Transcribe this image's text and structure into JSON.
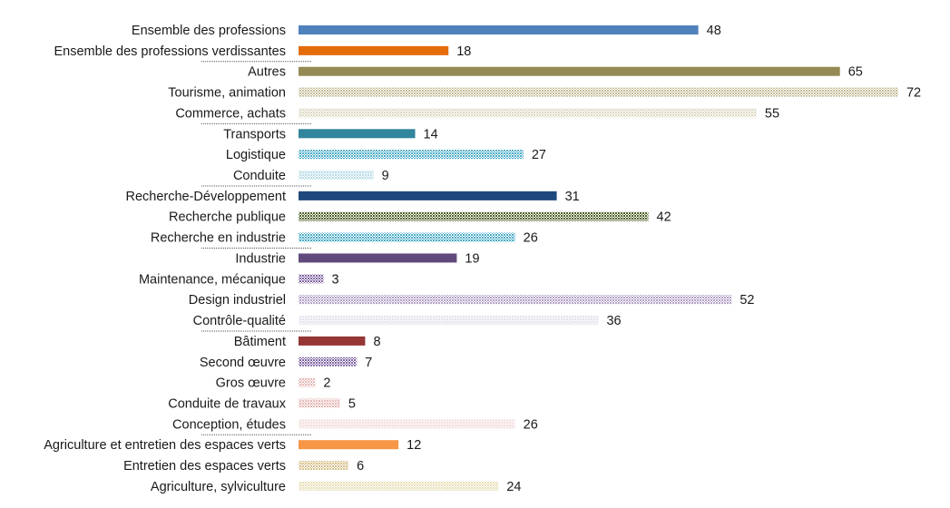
{
  "chart_data": {
    "type": "bar",
    "orientation": "horizontal",
    "categories": [
      "Ensemble des professions",
      "Ensemble des professions verdissantes",
      "Autres",
      "Tourisme, animation",
      "Commerce, achats",
      "Transports",
      "Logistique",
      "Conduite",
      "Recherche-Développement",
      "Recherche publique",
      "Recherche en industrie",
      "Industrie",
      "Maintenance, mécanique",
      "Design industriel",
      "Contrôle-qualité",
      "Bâtiment",
      "Second œuvre",
      "Gros œuvre",
      "Conduite de travaux",
      "Conception, études",
      "Agriculture et entretien des espaces verts",
      "Entretien des espaces verts",
      "Agriculture, sylviculture"
    ],
    "values": [
      48,
      18,
      65,
      72,
      55,
      14,
      27,
      9,
      31,
      42,
      26,
      19,
      3,
      52,
      36,
      8,
      7,
      2,
      5,
      26,
      12,
      6,
      24
    ],
    "value_labels": [
      "48",
      "18",
      "65",
      "72",
      "55",
      "14",
      "27",
      "9",
      "31",
      "42",
      "26",
      "19",
      "3",
      "52",
      "36",
      "8",
      "7",
      "2",
      "5",
      "26",
      "12",
      "6",
      "24"
    ],
    "group_headers": [
      2,
      5,
      8,
      11,
      15,
      20
    ],
    "bar_colors": [
      "#4f81bd",
      "#e46c0a",
      "#948a54",
      "#c4bd97",
      "#ddd9c3",
      "#31859c",
      "#4bacc6",
      "#b7dee8",
      "#1f497d",
      "#4f6228",
      "#4bacc6",
      "#604a7b",
      "#8064a2",
      "#b3a2c7",
      "#e5e0ec",
      "#953735",
      "#8064a2",
      "#e6b9b8",
      "#e6b9b8",
      "#f2dcdb",
      "#f79646",
      "#d7c08b",
      "#e8ddb5"
    ],
    "bar_patterns": [
      "solid",
      "solid",
      "solid",
      "hatch",
      "hatch",
      "solid",
      "hatch",
      "hatch",
      "solid",
      "hatch",
      "hatch",
      "solid",
      "hatch",
      "hatch",
      "hatch",
      "solid",
      "hatch",
      "hatch",
      "hatch",
      "hatch",
      "solid",
      "hatch",
      "hatch"
    ],
    "xlim": [
      0,
      75
    ],
    "title": "",
    "xlabel": "",
    "ylabel": "",
    "grid": false,
    "legend": "none"
  }
}
